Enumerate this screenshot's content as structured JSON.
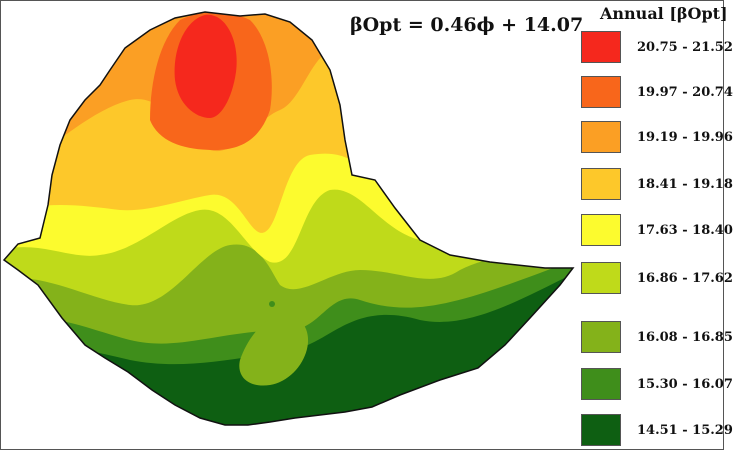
{
  "map": {
    "equation": "βOpt = 0.46ϕ + 14.07",
    "legend_title": "Annual [βOpt]",
    "legend": [
      {
        "label": "20.75 - 21.52",
        "color": "#f5281d"
      },
      {
        "label": "19.97 - 20.74",
        "color": "#f8661b"
      },
      {
        "label": "19.19 - 19.96",
        "color": "#fb9f24"
      },
      {
        "label": "18.41 - 19.18",
        "color": "#fdc82a"
      },
      {
        "label": "17.63 - 18.40",
        "color": "#fcfb2e"
      },
      {
        "label": "16.86 - 17.62",
        "color": "#bfda1a"
      },
      {
        "label": "16.08 - 16.85",
        "color": "#84b21a"
      },
      {
        "label": "15.30 - 16.07",
        "color": "#3f8e1b"
      },
      {
        "label": "14.51 - 15.29",
        "color": "#0e5f12"
      }
    ]
  }
}
